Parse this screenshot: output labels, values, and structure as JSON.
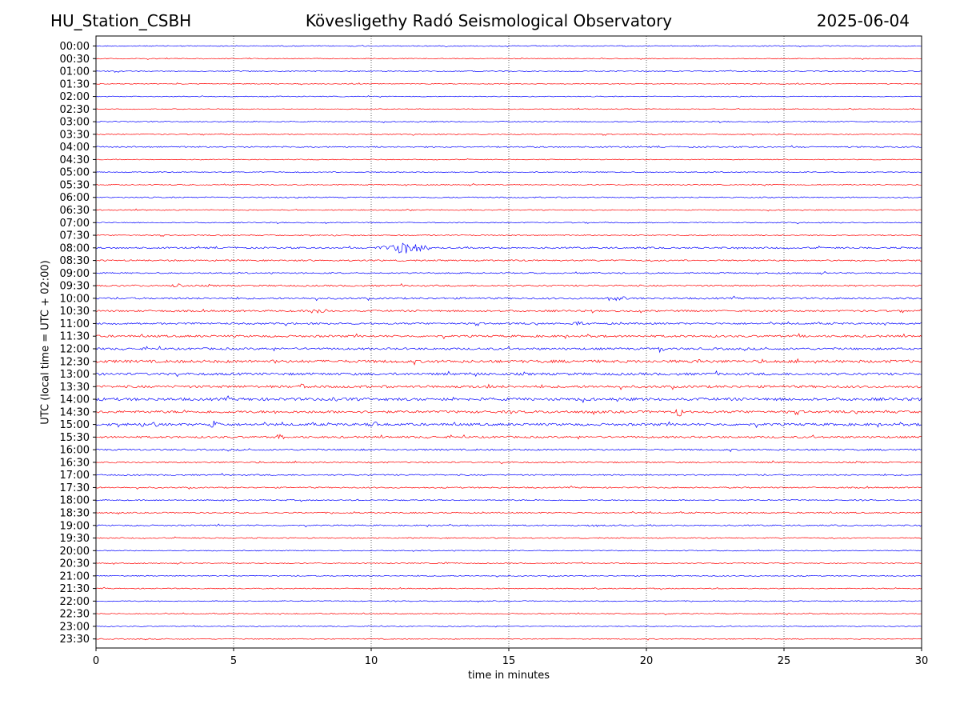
{
  "header": {
    "station": "HU_Station_CSBH",
    "observatory": "Kövesligethy Radó Seismological Observatory",
    "date": "2025-06-04"
  },
  "chart_data": {
    "type": "line",
    "title": "Kövesligethy Radó Seismological Observatory",
    "xlabel": "time in minutes",
    "ylabel": "UTC (local time = UTC + 02:00)",
    "xlim": [
      0,
      30
    ],
    "xticks": [
      0,
      5,
      10,
      15,
      20,
      25,
      30
    ],
    "grid": "vertical dotted at x ticks",
    "row_labels": [
      "00:00",
      "00:30",
      "01:00",
      "01:30",
      "02:00",
      "02:30",
      "03:00",
      "03:30",
      "04:00",
      "04:30",
      "05:00",
      "05:30",
      "06:00",
      "06:30",
      "07:00",
      "07:30",
      "08:00",
      "08:30",
      "09:00",
      "09:30",
      "10:00",
      "10:30",
      "11:00",
      "11:30",
      "12:00",
      "12:30",
      "13:00",
      "13:30",
      "14:00",
      "14:30",
      "15:00",
      "15:30",
      "16:00",
      "16:30",
      "17:00",
      "17:30",
      "18:00",
      "18:30",
      "19:00",
      "19:30",
      "20:00",
      "20:30",
      "21:00",
      "21:30",
      "22:00",
      "22:30",
      "23:00",
      "23:30"
    ],
    "colors": [
      "#0000ff",
      "#ff0000"
    ],
    "noise_level": [
      0.6,
      0.5,
      0.6,
      0.5,
      0.5,
      0.5,
      0.6,
      0.6,
      0.8,
      0.5,
      0.6,
      0.6,
      0.7,
      0.6,
      0.6,
      0.6,
      1.0,
      0.9,
      0.8,
      1.0,
      1.1,
      1.1,
      1.1,
      1.3,
      1.3,
      1.7,
      1.5,
      1.5,
      1.7,
      1.5,
      1.5,
      1.2,
      1.0,
      0.9,
      0.8,
      0.8,
      0.7,
      0.8,
      0.8,
      0.7,
      0.6,
      0.6,
      0.6,
      0.6,
      0.6,
      0.6,
      0.5,
      0.6
    ],
    "events": [
      {
        "row": "08:00",
        "minute": 11.2,
        "amplitude": 7,
        "duration": 1.2
      },
      {
        "row": "09:30",
        "minute": 3.0,
        "amplitude": 5,
        "duration": 0.3
      },
      {
        "row": "10:00",
        "minute": 18.9,
        "amplitude": 3,
        "duration": 0.6
      },
      {
        "row": "10:30",
        "minute": 8.1,
        "amplitude": 5,
        "duration": 0.4
      },
      {
        "row": "11:00",
        "minute": 17.5,
        "amplitude": 3,
        "duration": 0.5
      },
      {
        "row": "12:00",
        "minute": 20.5,
        "amplitude": 6,
        "duration": 0.2
      },
      {
        "row": "12:30",
        "minute": 6.4,
        "amplitude": 3,
        "duration": 0.2
      },
      {
        "row": "12:30",
        "minute": 21.9,
        "amplitude": 3,
        "duration": 0.3
      },
      {
        "row": "13:00",
        "minute": 13.8,
        "amplitude": 3,
        "duration": 0.3
      },
      {
        "row": "13:30",
        "minute": 7.5,
        "amplitude": 4,
        "duration": 0.2
      },
      {
        "row": "13:30",
        "minute": 14.2,
        "amplitude": 4,
        "duration": 0.2
      },
      {
        "row": "14:00",
        "minute": 8.7,
        "amplitude": 3,
        "duration": 0.2
      },
      {
        "row": "14:00",
        "minute": 30.0,
        "amplitude": 3,
        "duration": 0.2
      },
      {
        "row": "14:30",
        "minute": 21.2,
        "amplitude": 9,
        "duration": 0.15
      },
      {
        "row": "15:00",
        "minute": 4.3,
        "amplitude": 6,
        "duration": 0.3
      },
      {
        "row": "15:00",
        "minute": 10.1,
        "amplitude": 4,
        "duration": 0.3
      },
      {
        "row": "15:00",
        "minute": 2.1,
        "amplitude": 4,
        "duration": 0.15
      },
      {
        "row": "15:30",
        "minute": 6.7,
        "amplitude": 3,
        "duration": 0.3
      },
      {
        "row": "19:00",
        "minute": 18.0,
        "amplitude": 2,
        "duration": 0.5
      },
      {
        "row": "20:30",
        "minute": 12.8,
        "amplitude": 2,
        "duration": 0.4
      }
    ]
  }
}
